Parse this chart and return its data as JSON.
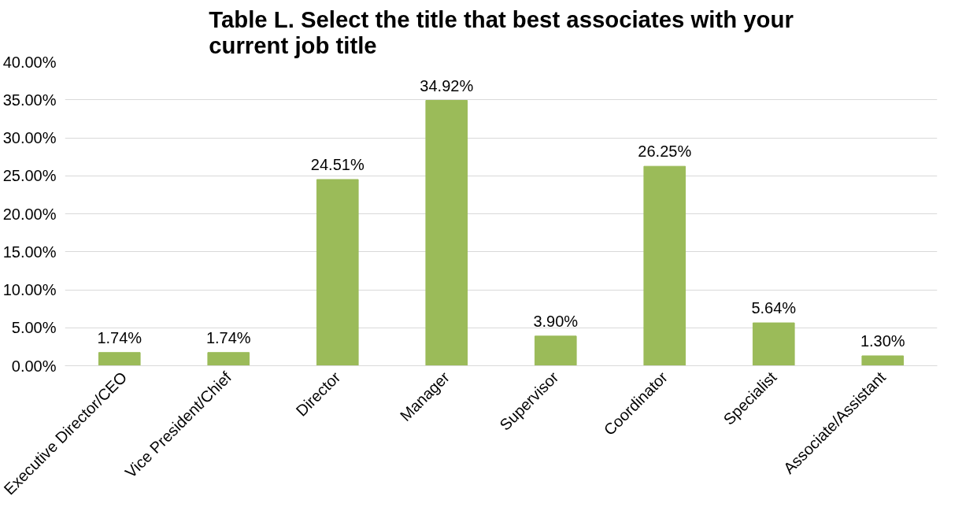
{
  "chart_data": {
    "type": "bar",
    "title": "Table L. Select the title that best associates with your current job title",
    "categories": [
      "Executive Director/CEO",
      "Vice President/Chief",
      "Director",
      "Manager",
      "Supervisor",
      "Coordinator",
      "Specialist",
      "Associate/Assistant"
    ],
    "values": [
      1.74,
      1.74,
      24.51,
      34.92,
      3.9,
      26.25,
      5.64,
      1.3
    ],
    "value_labels": [
      "1.74%",
      "1.74%",
      "24.51%",
      "34.92%",
      "3.90%",
      "26.25%",
      "5.64%",
      "1.30%"
    ],
    "color": "#9bbb59",
    "ylim": [
      0,
      40
    ],
    "yticks": [
      {
        "value": 0,
        "label": "0.00%"
      },
      {
        "value": 5,
        "label": "5.00%"
      },
      {
        "value": 10,
        "label": "10.00%"
      },
      {
        "value": 15,
        "label": "15.00%"
      },
      {
        "value": 20,
        "label": "20.00%"
      },
      {
        "value": 25,
        "label": "25.00%"
      },
      {
        "value": 30,
        "label": "30.00%"
      },
      {
        "value": 35,
        "label": "35.00%"
      },
      {
        "value": 40,
        "label": "40.00%"
      }
    ],
    "grid": "y"
  }
}
